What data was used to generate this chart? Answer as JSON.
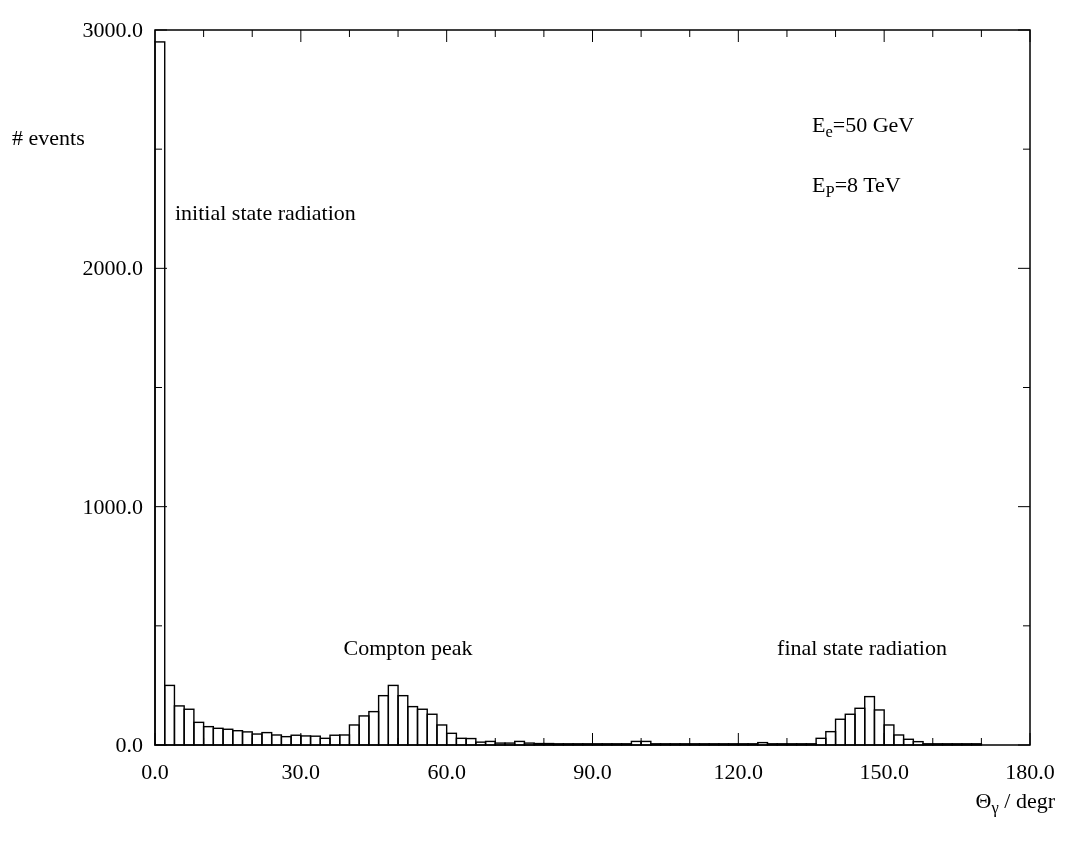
{
  "chart_data": {
    "type": "histogram",
    "xlabel": "Θ$_{γ}$ / degr",
    "ylabel": "# events",
    "color": "#000000",
    "bins": [
      0,
      2,
      4,
      6,
      8,
      10,
      12,
      14,
      16,
      18,
      20,
      22,
      24,
      26,
      28,
      30,
      32,
      34,
      36,
      38,
      40,
      42,
      44,
      46,
      48,
      50,
      52,
      54,
      56,
      58,
      60,
      62,
      64,
      66,
      68,
      70,
      72,
      74,
      76,
      78,
      80,
      82,
      84,
      86,
      88,
      90,
      92,
      94,
      96,
      98,
      100,
      102,
      104,
      106,
      108,
      110,
      112,
      114,
      116,
      118,
      120,
      122,
      124,
      126,
      128,
      130,
      132,
      134,
      136,
      138,
      140,
      142,
      144,
      146,
      148,
      150,
      152,
      154,
      156,
      158,
      160,
      162,
      164,
      166,
      168,
      170,
      172,
      174,
      176,
      178,
      180
    ],
    "values": [
      2950,
      250,
      164,
      150,
      95,
      77,
      70,
      66,
      60,
      55,
      46,
      52,
      42,
      35,
      41,
      38,
      37,
      28,
      41,
      42,
      84,
      122,
      140,
      207,
      250,
      207,
      161,
      150,
      129,
      84,
      49,
      28,
      27,
      12,
      15,
      8,
      8,
      15,
      8,
      6,
      6,
      5,
      5,
      5,
      5,
      5,
      5,
      5,
      5,
      15,
      15,
      5,
      5,
      5,
      5,
      5,
      5,
      5,
      5,
      5,
      5,
      5,
      10,
      5,
      5,
      5,
      5,
      5,
      28,
      56,
      108,
      129,
      154,
      203,
      147,
      84,
      42,
      24,
      14,
      5,
      5,
      5,
      5,
      5,
      5,
      0,
      0,
      0,
      0,
      0
    ],
    "xlim": [
      0,
      180
    ],
    "xticks": [
      {
        "value": 0,
        "label": "0.0"
      },
      {
        "value": 10,
        "label": null
      },
      {
        "value": 20,
        "label": null
      },
      {
        "value": 30,
        "label": "30.0"
      },
      {
        "value": 40,
        "label": null
      },
      {
        "value": 50,
        "label": null
      },
      {
        "value": 60,
        "label": "60.0"
      },
      {
        "value": 70,
        "label": null
      },
      {
        "value": 80,
        "label": null
      },
      {
        "value": 90,
        "label": "90.0"
      },
      {
        "value": 100,
        "label": null
      },
      {
        "value": 110,
        "label": null
      },
      {
        "value": 120,
        "label": "120.0"
      },
      {
        "value": 130,
        "label": null
      },
      {
        "value": 140,
        "label": null
      },
      {
        "value": 150,
        "label": "150.0"
      },
      {
        "value": 160,
        "label": null
      },
      {
        "value": 170,
        "label": null
      },
      {
        "value": 180,
        "label": "180.0"
      }
    ],
    "ylim": [
      0,
      3000
    ],
    "yticks": [
      {
        "value": 0,
        "label": "0.0"
      },
      {
        "value": 500,
        "label": null
      },
      {
        "value": 1000,
        "label": "1000.0"
      },
      {
        "value": 1500,
        "label": null
      },
      {
        "value": 2000,
        "label": "2000.0"
      },
      {
        "value": 2500,
        "label": null
      },
      {
        "value": 3000,
        "label": "3000.0"
      }
    ],
    "annotations": [
      "initial state radiation",
      "Compton peak",
      "final state radiation",
      "E$_{e}$=50 GeV",
      "E$_{P}$=8 TeV"
    ]
  }
}
